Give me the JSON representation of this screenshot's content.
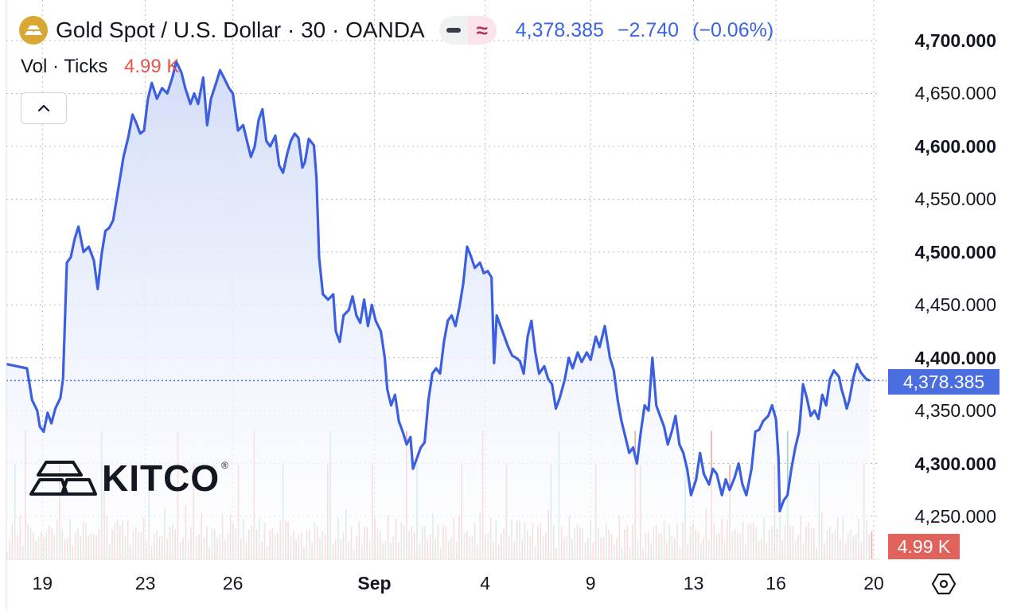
{
  "header": {
    "title": "Gold Spot / U.S. Dollar · 30 · OANDA",
    "last_price": "4,378.385",
    "change": "−2.740",
    "change_pct": "(−0.06%)",
    "toggle_icon_right": "≈"
  },
  "volume": {
    "label": "Vol · Ticks",
    "value": "4.99 K",
    "tag": "4.99 K"
  },
  "logo": {
    "text": "KITCO",
    "reg": "®"
  },
  "price_tag": "4,378.385",
  "colors": {
    "line": "#3b5fe0",
    "area_top": "#d3ddf8",
    "area_bottom": "#ffffff",
    "vol_up": "#8fcdc0",
    "vol_down": "#ef9a9a",
    "price_tag_bg": "#4a6ee0",
    "vol_tag_bg": "#e0625a",
    "logo_gold": "#d9a733"
  },
  "chart_data": {
    "type": "area",
    "title": "Gold Spot / U.S. Dollar · 30 · OANDA",
    "ylim": [
      4225,
      4720
    ],
    "y_ticks": [
      {
        "label": "4,700.000",
        "value": 4700,
        "bold": true
      },
      {
        "label": "4,650.000",
        "value": 4650,
        "bold": false
      },
      {
        "label": "4,600.000",
        "value": 4600,
        "bold": true
      },
      {
        "label": "4,550.000",
        "value": 4550,
        "bold": false
      },
      {
        "label": "4,500.000",
        "value": 4500,
        "bold": true
      },
      {
        "label": "4,450.000",
        "value": 4450,
        "bold": false
      },
      {
        "label": "4,400.000",
        "value": 4400,
        "bold": true
      },
      {
        "label": "4,350.000",
        "value": 4350,
        "bold": false
      },
      {
        "label": "4,300.000",
        "value": 4300,
        "bold": true
      },
      {
        "label": "4,250.000",
        "value": 4250,
        "bold": false
      }
    ],
    "x_ticks": [
      {
        "label": "19",
        "t": 1.4,
        "bold": false
      },
      {
        "label": "23",
        "t": 5.4,
        "bold": false
      },
      {
        "label": "26",
        "t": 8.8,
        "bold": false
      },
      {
        "label": "Sep",
        "t": 14.3,
        "bold": true
      },
      {
        "label": "4",
        "t": 18.6,
        "bold": false
      },
      {
        "label": "9",
        "t": 22.7,
        "bold": false
      },
      {
        "label": "13",
        "t": 26.7,
        "bold": false
      },
      {
        "label": "16",
        "t": 29.9,
        "bold": false
      },
      {
        "label": "20",
        "t": 33.7,
        "bold": false
      }
    ],
    "t_range": [
      0,
      33.7
    ],
    "series": [
      {
        "values": [
          [
            0.0,
            4394
          ],
          [
            0.4,
            4392
          ],
          [
            0.8,
            4390
          ],
          [
            1.0,
            4360
          ],
          [
            1.2,
            4350
          ],
          [
            1.3,
            4335
          ],
          [
            1.45,
            4330
          ],
          [
            1.6,
            4348
          ],
          [
            1.75,
            4338
          ],
          [
            1.9,
            4352
          ],
          [
            2.1,
            4362
          ],
          [
            2.2,
            4380
          ],
          [
            2.35,
            4490
          ],
          [
            2.5,
            4495
          ],
          [
            2.65,
            4512
          ],
          [
            2.8,
            4524
          ],
          [
            3.0,
            4500
          ],
          [
            3.2,
            4505
          ],
          [
            3.4,
            4492
          ],
          [
            3.55,
            4465
          ],
          [
            3.7,
            4498
          ],
          [
            3.85,
            4520
          ],
          [
            4.0,
            4523
          ],
          [
            4.15,
            4530
          ],
          [
            4.35,
            4560
          ],
          [
            4.55,
            4590
          ],
          [
            4.75,
            4610
          ],
          [
            4.9,
            4630
          ],
          [
            5.05,
            4622
          ],
          [
            5.2,
            4612
          ],
          [
            5.35,
            4615
          ],
          [
            5.5,
            4645
          ],
          [
            5.65,
            4660
          ],
          [
            5.85,
            4645
          ],
          [
            6.05,
            4655
          ],
          [
            6.25,
            4650
          ],
          [
            6.45,
            4665
          ],
          [
            6.6,
            4680
          ],
          [
            6.8,
            4670
          ],
          [
            6.95,
            4655
          ],
          [
            7.15,
            4640
          ],
          [
            7.3,
            4650
          ],
          [
            7.45,
            4640
          ],
          [
            7.65,
            4665
          ],
          [
            7.8,
            4620
          ],
          [
            7.95,
            4645
          ],
          [
            8.15,
            4660
          ],
          [
            8.3,
            4672
          ],
          [
            8.45,
            4665
          ],
          [
            8.65,
            4655
          ],
          [
            8.8,
            4650
          ],
          [
            9.0,
            4615
          ],
          [
            9.2,
            4620
          ],
          [
            9.35,
            4605
          ],
          [
            9.5,
            4590
          ],
          [
            9.65,
            4600
          ],
          [
            9.8,
            4625
          ],
          [
            9.95,
            4635
          ],
          [
            10.1,
            4605
          ],
          [
            10.25,
            4600
          ],
          [
            10.45,
            4610
          ],
          [
            10.6,
            4582
          ],
          [
            10.75,
            4575
          ],
          [
            10.9,
            4592
          ],
          [
            11.05,
            4605
          ],
          [
            11.2,
            4612
          ],
          [
            11.35,
            4608
          ],
          [
            11.5,
            4580
          ],
          [
            11.6,
            4585
          ],
          [
            11.75,
            4607
          ],
          [
            11.95,
            4601
          ],
          [
            12.05,
            4570
          ],
          [
            12.15,
            4495
          ],
          [
            12.3,
            4460
          ],
          [
            12.5,
            4455
          ],
          [
            12.7,
            4460
          ],
          [
            12.8,
            4425
          ],
          [
            12.95,
            4415
          ],
          [
            13.1,
            4440
          ],
          [
            13.3,
            4445
          ],
          [
            13.45,
            4458
          ],
          [
            13.6,
            4440
          ],
          [
            13.75,
            4433
          ],
          [
            13.9,
            4455
          ],
          [
            14.05,
            4430
          ],
          [
            14.2,
            4450
          ],
          [
            14.35,
            4435
          ],
          [
            14.55,
            4425
          ],
          [
            14.7,
            4400
          ],
          [
            14.8,
            4370
          ],
          [
            14.95,
            4355
          ],
          [
            15.1,
            4365
          ],
          [
            15.25,
            4340
          ],
          [
            15.4,
            4330
          ],
          [
            15.55,
            4318
          ],
          [
            15.7,
            4325
          ],
          [
            15.8,
            4295
          ],
          [
            15.95,
            4305
          ],
          [
            16.1,
            4315
          ],
          [
            16.25,
            4320
          ],
          [
            16.4,
            4360
          ],
          [
            16.55,
            4385
          ],
          [
            16.7,
            4390
          ],
          [
            16.85,
            4385
          ],
          [
            17.0,
            4415
          ],
          [
            17.15,
            4435
          ],
          [
            17.3,
            4440
          ],
          [
            17.45,
            4430
          ],
          [
            17.6,
            4448
          ],
          [
            17.75,
            4470
          ],
          [
            17.9,
            4505
          ],
          [
            18.05,
            4496
          ],
          [
            18.2,
            4485
          ],
          [
            18.4,
            4490
          ],
          [
            18.55,
            4480
          ],
          [
            18.7,
            4482
          ],
          [
            18.85,
            4476
          ],
          [
            18.95,
            4395
          ],
          [
            19.05,
            4440
          ],
          [
            19.2,
            4430
          ],
          [
            19.35,
            4420
          ],
          [
            19.5,
            4410
          ],
          [
            19.65,
            4402
          ],
          [
            19.8,
            4400
          ],
          [
            19.95,
            4397
          ],
          [
            20.1,
            4385
          ],
          [
            20.25,
            4420
          ],
          [
            20.4,
            4435
          ],
          [
            20.55,
            4405
          ],
          [
            20.7,
            4385
          ],
          [
            20.9,
            4392
          ],
          [
            21.05,
            4380
          ],
          [
            21.2,
            4375
          ],
          [
            21.35,
            4352
          ],
          [
            21.5,
            4362
          ],
          [
            21.7,
            4380
          ],
          [
            21.85,
            4400
          ],
          [
            22.0,
            4390
          ],
          [
            22.2,
            4405
          ],
          [
            22.35,
            4396
          ],
          [
            22.55,
            4405
          ],
          [
            22.7,
            4398
          ],
          [
            22.9,
            4420
          ],
          [
            23.05,
            4410
          ],
          [
            23.25,
            4430
          ],
          [
            23.45,
            4400
          ],
          [
            23.6,
            4388
          ],
          [
            23.75,
            4360
          ],
          [
            23.9,
            4340
          ],
          [
            24.05,
            4325
          ],
          [
            24.2,
            4310
          ],
          [
            24.35,
            4315
          ],
          [
            24.5,
            4300
          ],
          [
            24.65,
            4330
          ],
          [
            24.8,
            4355
          ],
          [
            24.95,
            4350
          ],
          [
            25.1,
            4400
          ],
          [
            25.25,
            4355
          ],
          [
            25.4,
            4345
          ],
          [
            25.55,
            4335
          ],
          [
            25.7,
            4318
          ],
          [
            25.85,
            4330
          ],
          [
            26.0,
            4345
          ],
          [
            26.15,
            4318
          ],
          [
            26.3,
            4310
          ],
          [
            26.45,
            4295
          ],
          [
            26.6,
            4270
          ],
          [
            26.8,
            4285
          ],
          [
            26.95,
            4310
          ],
          [
            27.1,
            4290
          ],
          [
            27.3,
            4280
          ],
          [
            27.45,
            4295
          ],
          [
            27.6,
            4290
          ],
          [
            27.8,
            4270
          ],
          [
            27.95,
            4285
          ],
          [
            28.1,
            4275
          ],
          [
            28.3,
            4287
          ],
          [
            28.45,
            4300
          ],
          [
            28.6,
            4280
          ],
          [
            28.75,
            4270
          ],
          [
            28.95,
            4295
          ],
          [
            29.1,
            4330
          ],
          [
            29.25,
            4332
          ],
          [
            29.4,
            4340
          ],
          [
            29.6,
            4345
          ],
          [
            29.75,
            4355
          ],
          [
            29.9,
            4342
          ],
          [
            30.0,
            4305
          ],
          [
            30.05,
            4255
          ],
          [
            30.2,
            4265
          ],
          [
            30.35,
            4270
          ],
          [
            30.5,
            4295
          ],
          [
            30.65,
            4315
          ],
          [
            30.8,
            4330
          ],
          [
            30.95,
            4375
          ],
          [
            31.1,
            4362
          ],
          [
            31.25,
            4345
          ],
          [
            31.4,
            4350
          ],
          [
            31.55,
            4342
          ],
          [
            31.7,
            4365
          ],
          [
            31.85,
            4355
          ],
          [
            32.0,
            4380
          ],
          [
            32.15,
            4388
          ],
          [
            32.35,
            4382
          ],
          [
            32.45,
            4370
          ],
          [
            32.55,
            4362
          ],
          [
            32.65,
            4352
          ],
          [
            32.75,
            4360
          ],
          [
            32.9,
            4380
          ],
          [
            33.05,
            4394
          ],
          [
            33.2,
            4386
          ],
          [
            33.4,
            4380
          ],
          [
            33.55,
            4378.4
          ]
        ]
      }
    ],
    "volume": {
      "max": 1,
      "values": [
        0.18,
        0.25,
        0.42,
        0.2,
        0.3,
        0.55,
        0.22,
        0.35,
        0.28,
        0.6,
        0.24,
        0.45,
        0.32,
        0.2,
        0.5,
        0.38,
        0.3,
        0.65,
        0.26,
        0.4,
        0.22,
        0.34,
        0.48,
        0.3,
        0.52,
        0.27,
        0.36,
        0.24,
        0.44,
        0.58,
        0.3,
        0.4,
        0.22,
        0.62,
        0.35,
        0.28,
        0.46,
        0.3,
        0.55,
        0.25,
        0.38,
        0.3,
        0.8,
        0.42,
        0.95,
        0.35,
        0.5,
        0.3,
        0.4,
        0.26,
        0.55,
        0.32,
        0.45,
        0.28,
        0.6,
        0.33,
        0.4,
        0.25,
        0.5,
        0.3,
        0.72,
        0.38,
        0.45,
        0.28,
        0.56,
        0.34,
        0.42,
        0.3,
        0.86,
        0.4,
        0.5,
        0.3,
        0.44,
        0.26,
        0.58,
        0.35,
        0.4,
        0.3,
        0.54,
        0.28,
        0.46,
        0.32,
        0.6,
        0.36,
        0.3,
        0.5,
        0.7,
        0.34,
        0.42,
        0.28,
        0.52,
        0.36,
        0.45,
        0.3,
        0.62,
        0.38,
        0.42,
        0.27,
        0.5,
        0.33,
        0.48,
        0.3,
        0.55,
        0.38,
        0.44,
        0.28,
        0.6,
        0.35,
        0.4,
        0.3,
        0.5,
        0.36
      ]
    }
  }
}
